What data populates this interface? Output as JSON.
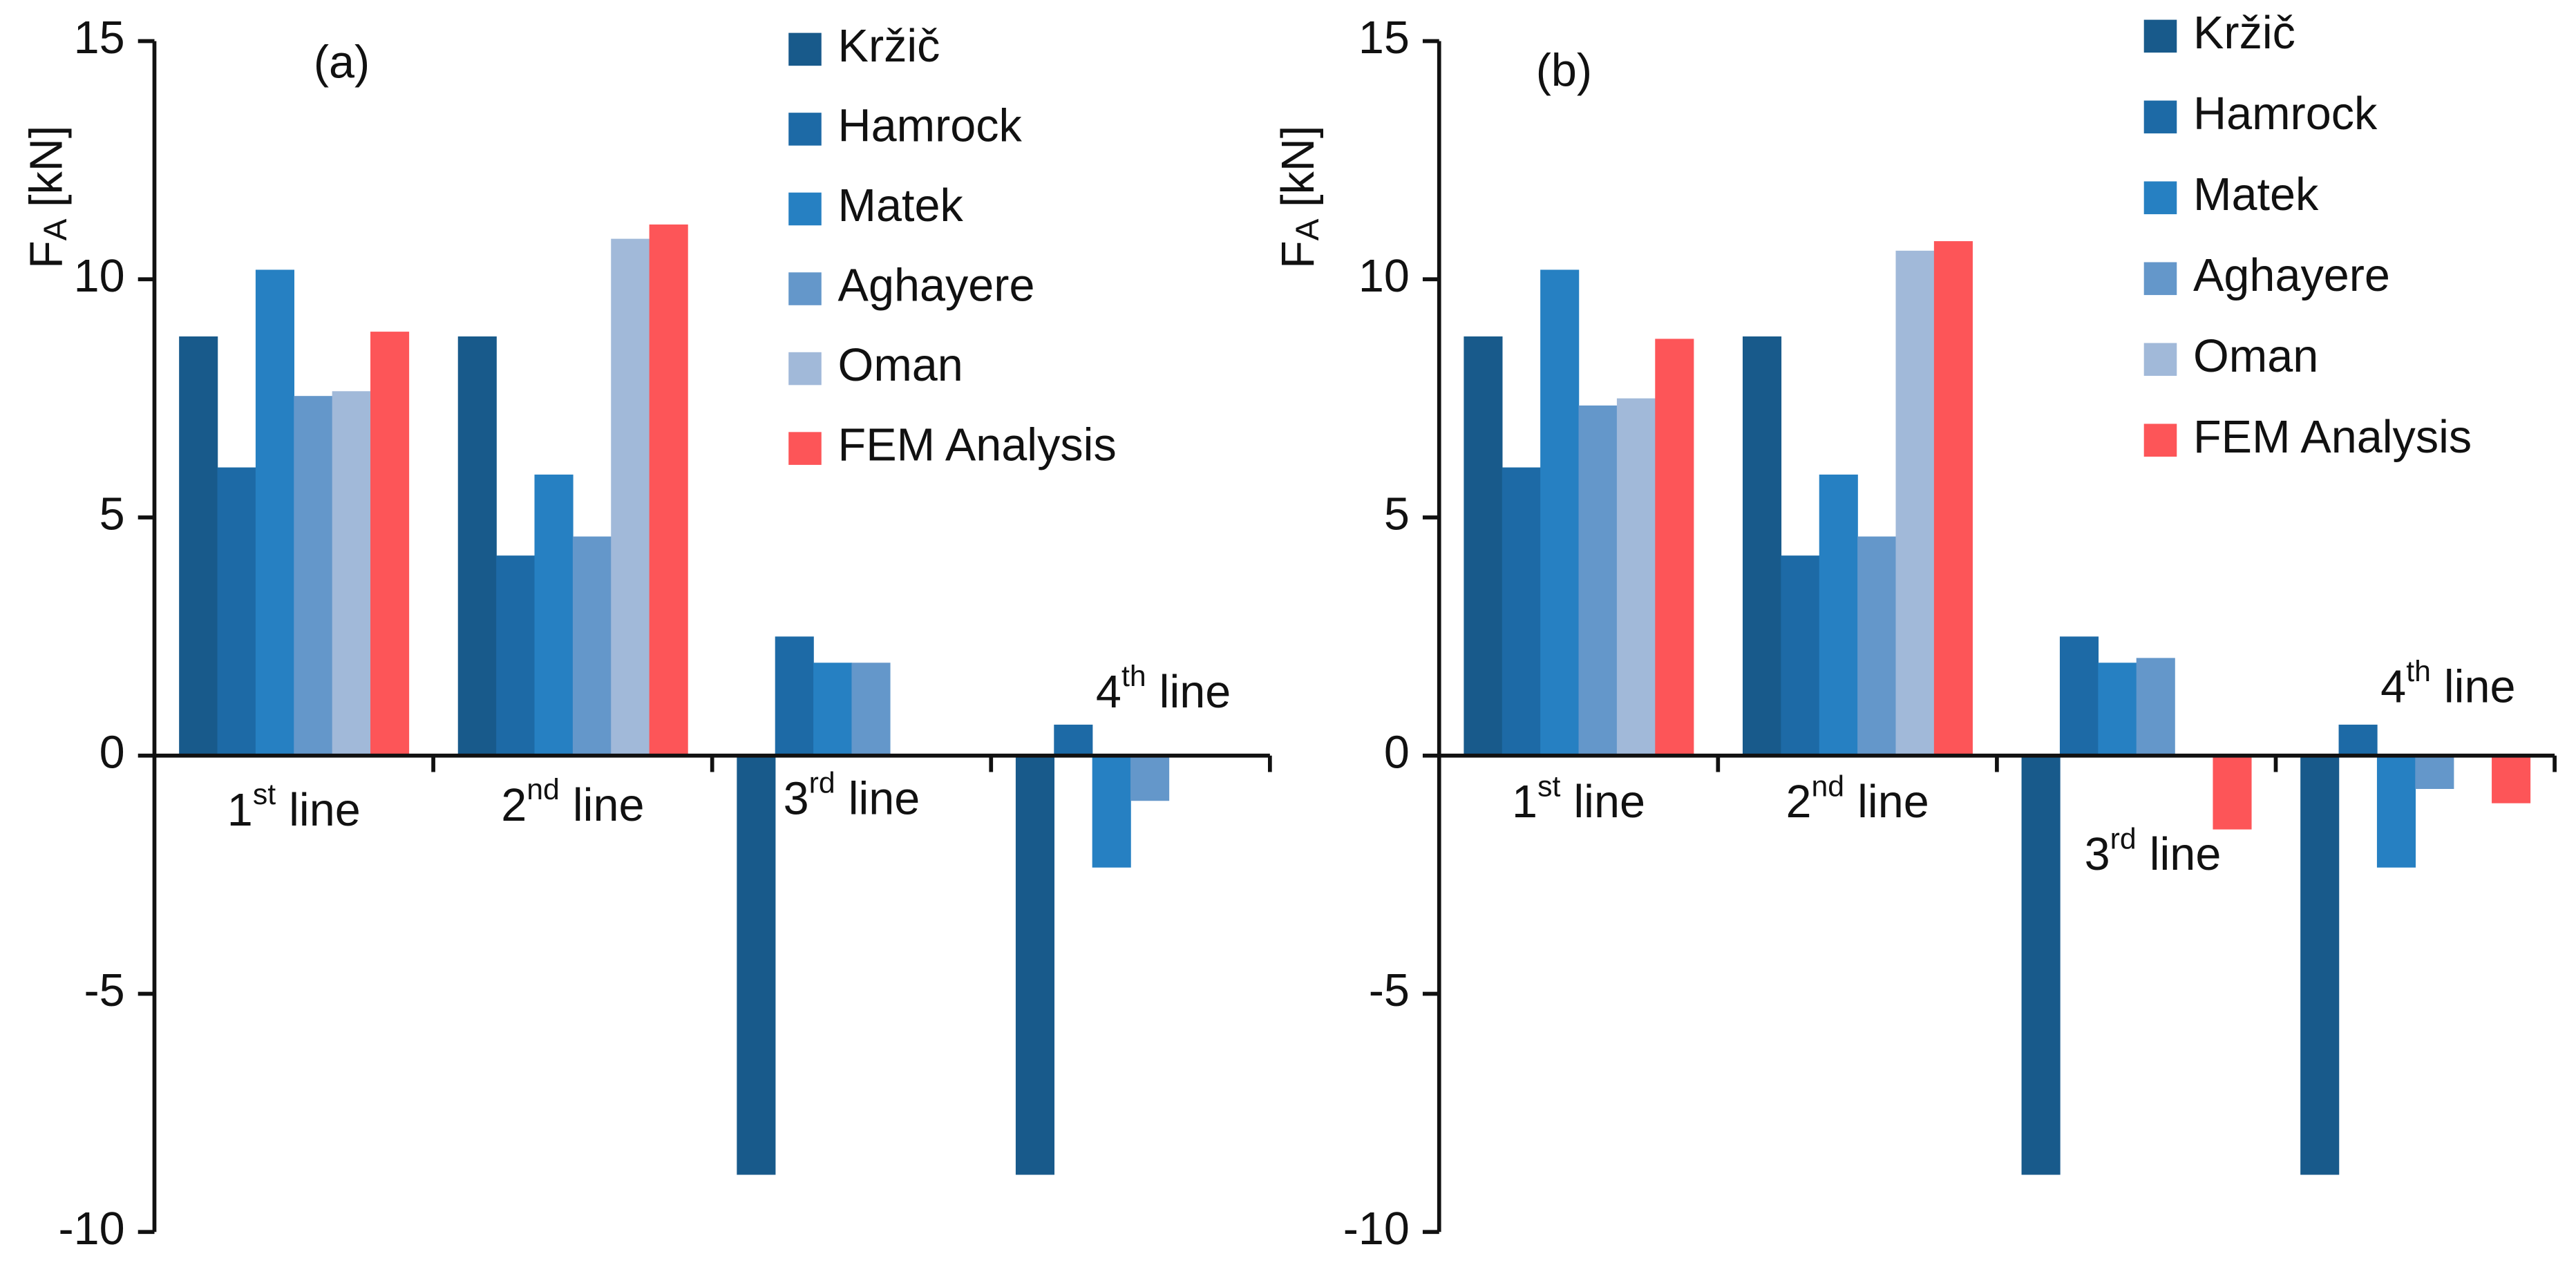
{
  "chart_data": [
    {
      "type": "bar",
      "panel_label": "(a)",
      "ylabel": {
        "symbol": "F",
        "subscript": "A",
        "unit": "[kN]"
      },
      "categories": [
        {
          "ordinal": "1",
          "suffix": "st",
          "word": "line"
        },
        {
          "ordinal": "2",
          "suffix": "nd",
          "word": "line"
        },
        {
          "ordinal": "3",
          "suffix": "rd",
          "word": "line"
        },
        {
          "ordinal": "4",
          "suffix": "th",
          "word": "line"
        }
      ],
      "series": [
        {
          "name": "Kržič",
          "color": "#185a8b",
          "values": [
            8.8,
            8.8,
            -8.8,
            -8.8
          ]
        },
        {
          "name": "Hamrock",
          "color": "#1d6aa6",
          "values": [
            6.05,
            4.2,
            2.5,
            0.65
          ]
        },
        {
          "name": "Matek",
          "color": "#2680c2",
          "values": [
            10.2,
            5.9,
            1.95,
            -2.35
          ]
        },
        {
          "name": "Aghayere",
          "color": "#6497ca",
          "values": [
            7.55,
            4.6,
            1.95,
            -0.95
          ]
        },
        {
          "name": "Oman",
          "color": "#a1b9d9",
          "values": [
            7.65,
            10.85,
            null,
            null
          ]
        },
        {
          "name": "FEM Analysis",
          "color": "#fd5558",
          "values": [
            8.9,
            11.15,
            null,
            null
          ]
        }
      ],
      "ylim": [
        -10,
        15
      ],
      "yticks": [
        -10,
        -5,
        0,
        5,
        10,
        15
      ],
      "grid": false
    },
    {
      "type": "bar",
      "panel_label": "(b)",
      "ylabel": {
        "symbol": "F",
        "subscript": "A",
        "unit": "[kN]"
      },
      "categories": [
        {
          "ordinal": "1",
          "suffix": "st",
          "word": "line"
        },
        {
          "ordinal": "2",
          "suffix": "nd",
          "word": "line"
        },
        {
          "ordinal": "3",
          "suffix": "rd",
          "word": "line"
        },
        {
          "ordinal": "4",
          "suffix": "th",
          "word": "line"
        }
      ],
      "series": [
        {
          "name": "Kržič",
          "color": "#185a8b",
          "values": [
            8.8,
            8.8,
            -8.8,
            -8.8
          ]
        },
        {
          "name": "Hamrock",
          "color": "#1d6aa6",
          "values": [
            6.05,
            4.2,
            2.5,
            0.65
          ]
        },
        {
          "name": "Matek",
          "color": "#2680c2",
          "values": [
            10.2,
            5.9,
            1.95,
            -2.35
          ]
        },
        {
          "name": "Aghayere",
          "color": "#6497ca",
          "values": [
            7.35,
            4.6,
            2.05,
            -0.7
          ]
        },
        {
          "name": "Oman",
          "color": "#a1b9d9",
          "values": [
            7.5,
            10.6,
            null,
            null
          ]
        },
        {
          "name": "FEM Analysis",
          "color": "#fd5558",
          "values": [
            8.75,
            10.8,
            -1.55,
            -1.0
          ]
        }
      ],
      "ylim": [
        -10,
        15
      ],
      "yticks": [
        -10,
        -5,
        0,
        5,
        10,
        15
      ],
      "grid": false
    }
  ]
}
